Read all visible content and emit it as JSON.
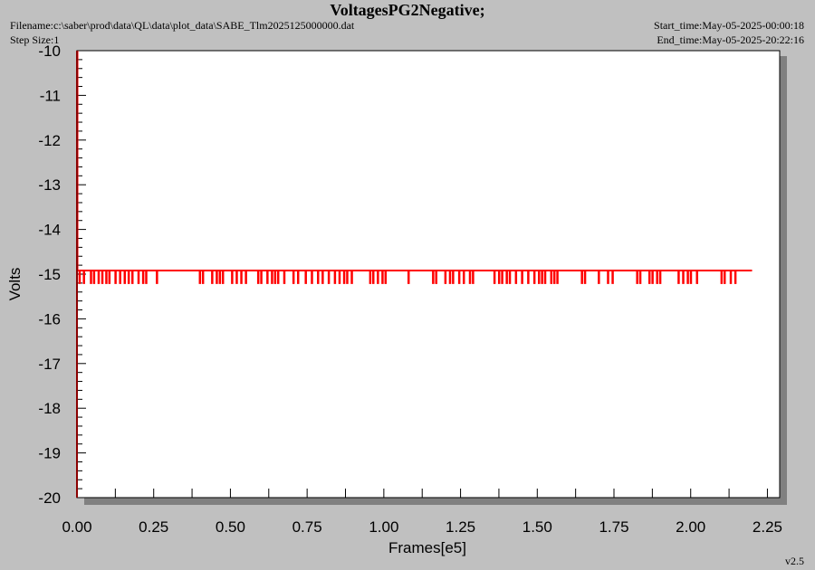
{
  "header": {
    "title": "VoltagesPG2Negative;",
    "filename": "Filename:c:\\saber\\prod\\data\\QL\\data\\plot_data\\SABE_Tlm2025125000000.dat",
    "step_size": "Step Size:1",
    "start_time": "Start_time:May-05-2025-00:00:18",
    "end_time": "End_time:May-05-2025-20:22:16"
  },
  "footer": {
    "version": "v2.5"
  },
  "colors": {
    "series": "#ff0000",
    "y_axis": "#8b0000",
    "plot_bg": "#ffffff",
    "frame_bg": "#c0c0c0",
    "shadow": "#808080"
  },
  "chart_data": {
    "type": "line",
    "title": "VoltagesPG2Negative;",
    "xlabel": "Frames[e5]",
    "ylabel": "Volts",
    "xlim": [
      0,
      2.29
    ],
    "ylim": [
      -20,
      -10
    ],
    "x_ticks": [
      "0.00",
      "0.25",
      "0.50",
      "0.75",
      "1.00",
      "1.25",
      "1.50",
      "1.75",
      "2.00",
      "2.25"
    ],
    "y_ticks": [
      "-10",
      "-11",
      "-12",
      "-13",
      "-14",
      "-15",
      "-16",
      "-17",
      "-18",
      "-19",
      "-20"
    ],
    "grid": false,
    "series": [
      {
        "baseline": -14.92,
        "x_start": 0.0,
        "x_end": 2.2,
        "initial_drop": {
          "x": 0.0,
          "from": -10.0,
          "to": -14.92
        },
        "dips": [
          {
            "x": 0.008,
            "y": -15.2
          },
          {
            "x": 0.022,
            "y": -15.2
          },
          {
            "x": 0.045,
            "y": -15.2
          },
          {
            "x": 0.055,
            "y": -15.2
          },
          {
            "x": 0.07,
            "y": -15.2
          },
          {
            "x": 0.082,
            "y": -15.2
          },
          {
            "x": 0.095,
            "y": -15.2
          },
          {
            "x": 0.105,
            "y": -15.2
          },
          {
            "x": 0.125,
            "y": -15.2
          },
          {
            "x": 0.14,
            "y": -15.2
          },
          {
            "x": 0.155,
            "y": -15.2
          },
          {
            "x": 0.168,
            "y": -15.2
          },
          {
            "x": 0.18,
            "y": -15.2
          },
          {
            "x": 0.2,
            "y": -15.2
          },
          {
            "x": 0.215,
            "y": -15.2
          },
          {
            "x": 0.225,
            "y": -15.2
          },
          {
            "x": 0.26,
            "y": -15.2
          },
          {
            "x": 0.4,
            "y": -15.2
          },
          {
            "x": 0.41,
            "y": -15.2
          },
          {
            "x": 0.44,
            "y": -15.2
          },
          {
            "x": 0.455,
            "y": -15.2
          },
          {
            "x": 0.465,
            "y": -15.2
          },
          {
            "x": 0.475,
            "y": -15.2
          },
          {
            "x": 0.505,
            "y": -15.2
          },
          {
            "x": 0.52,
            "y": -15.2
          },
          {
            "x": 0.535,
            "y": -15.2
          },
          {
            "x": 0.55,
            "y": -15.2
          },
          {
            "x": 0.59,
            "y": -15.2
          },
          {
            "x": 0.6,
            "y": -15.2
          },
          {
            "x": 0.62,
            "y": -15.2
          },
          {
            "x": 0.635,
            "y": -15.2
          },
          {
            "x": 0.645,
            "y": -15.2
          },
          {
            "x": 0.655,
            "y": -15.2
          },
          {
            "x": 0.675,
            "y": -15.2
          },
          {
            "x": 0.705,
            "y": -15.2
          },
          {
            "x": 0.72,
            "y": -15.2
          },
          {
            "x": 0.745,
            "y": -15.2
          },
          {
            "x": 0.765,
            "y": -15.2
          },
          {
            "x": 0.785,
            "y": -15.2
          },
          {
            "x": 0.8,
            "y": -15.2
          },
          {
            "x": 0.82,
            "y": -15.2
          },
          {
            "x": 0.84,
            "y": -15.2
          },
          {
            "x": 0.855,
            "y": -15.2
          },
          {
            "x": 0.87,
            "y": -15.2
          },
          {
            "x": 0.88,
            "y": -15.2
          },
          {
            "x": 0.895,
            "y": -15.2
          },
          {
            "x": 0.955,
            "y": -15.2
          },
          {
            "x": 0.965,
            "y": -15.2
          },
          {
            "x": 0.98,
            "y": -15.2
          },
          {
            "x": 0.995,
            "y": -15.2
          },
          {
            "x": 1.005,
            "y": -15.2
          },
          {
            "x": 1.08,
            "y": -15.2
          },
          {
            "x": 1.16,
            "y": -15.2
          },
          {
            "x": 1.17,
            "y": -15.2
          },
          {
            "x": 1.2,
            "y": -15.2
          },
          {
            "x": 1.215,
            "y": -15.2
          },
          {
            "x": 1.225,
            "y": -15.2
          },
          {
            "x": 1.245,
            "y": -15.2
          },
          {
            "x": 1.26,
            "y": -15.2
          },
          {
            "x": 1.28,
            "y": -15.2
          },
          {
            "x": 1.29,
            "y": -15.2
          },
          {
            "x": 1.36,
            "y": -15.2
          },
          {
            "x": 1.375,
            "y": -15.2
          },
          {
            "x": 1.385,
            "y": -15.2
          },
          {
            "x": 1.4,
            "y": -15.2
          },
          {
            "x": 1.41,
            "y": -15.2
          },
          {
            "x": 1.43,
            "y": -15.2
          },
          {
            "x": 1.45,
            "y": -15.2
          },
          {
            "x": 1.47,
            "y": -15.2
          },
          {
            "x": 1.49,
            "y": -15.2
          },
          {
            "x": 1.505,
            "y": -15.2
          },
          {
            "x": 1.515,
            "y": -15.2
          },
          {
            "x": 1.525,
            "y": -15.2
          },
          {
            "x": 1.545,
            "y": -15.2
          },
          {
            "x": 1.555,
            "y": -15.2
          },
          {
            "x": 1.565,
            "y": -15.2
          },
          {
            "x": 1.645,
            "y": -15.2
          },
          {
            "x": 1.655,
            "y": -15.2
          },
          {
            "x": 1.7,
            "y": -15.2
          },
          {
            "x": 1.73,
            "y": -15.2
          },
          {
            "x": 1.745,
            "y": -15.2
          },
          {
            "x": 1.825,
            "y": -15.2
          },
          {
            "x": 1.835,
            "y": -15.2
          },
          {
            "x": 1.865,
            "y": -15.2
          },
          {
            "x": 1.875,
            "y": -15.2
          },
          {
            "x": 1.89,
            "y": -15.2
          },
          {
            "x": 1.9,
            "y": -15.2
          },
          {
            "x": 1.96,
            "y": -15.2
          },
          {
            "x": 1.975,
            "y": -15.2
          },
          {
            "x": 1.99,
            "y": -15.2
          },
          {
            "x": 2.0,
            "y": -15.2
          },
          {
            "x": 2.02,
            "y": -15.2
          },
          {
            "x": 2.1,
            "y": -15.2
          },
          {
            "x": 2.11,
            "y": -15.2
          },
          {
            "x": 2.13,
            "y": -15.2
          },
          {
            "x": 2.145,
            "y": -15.2
          }
        ]
      }
    ]
  }
}
